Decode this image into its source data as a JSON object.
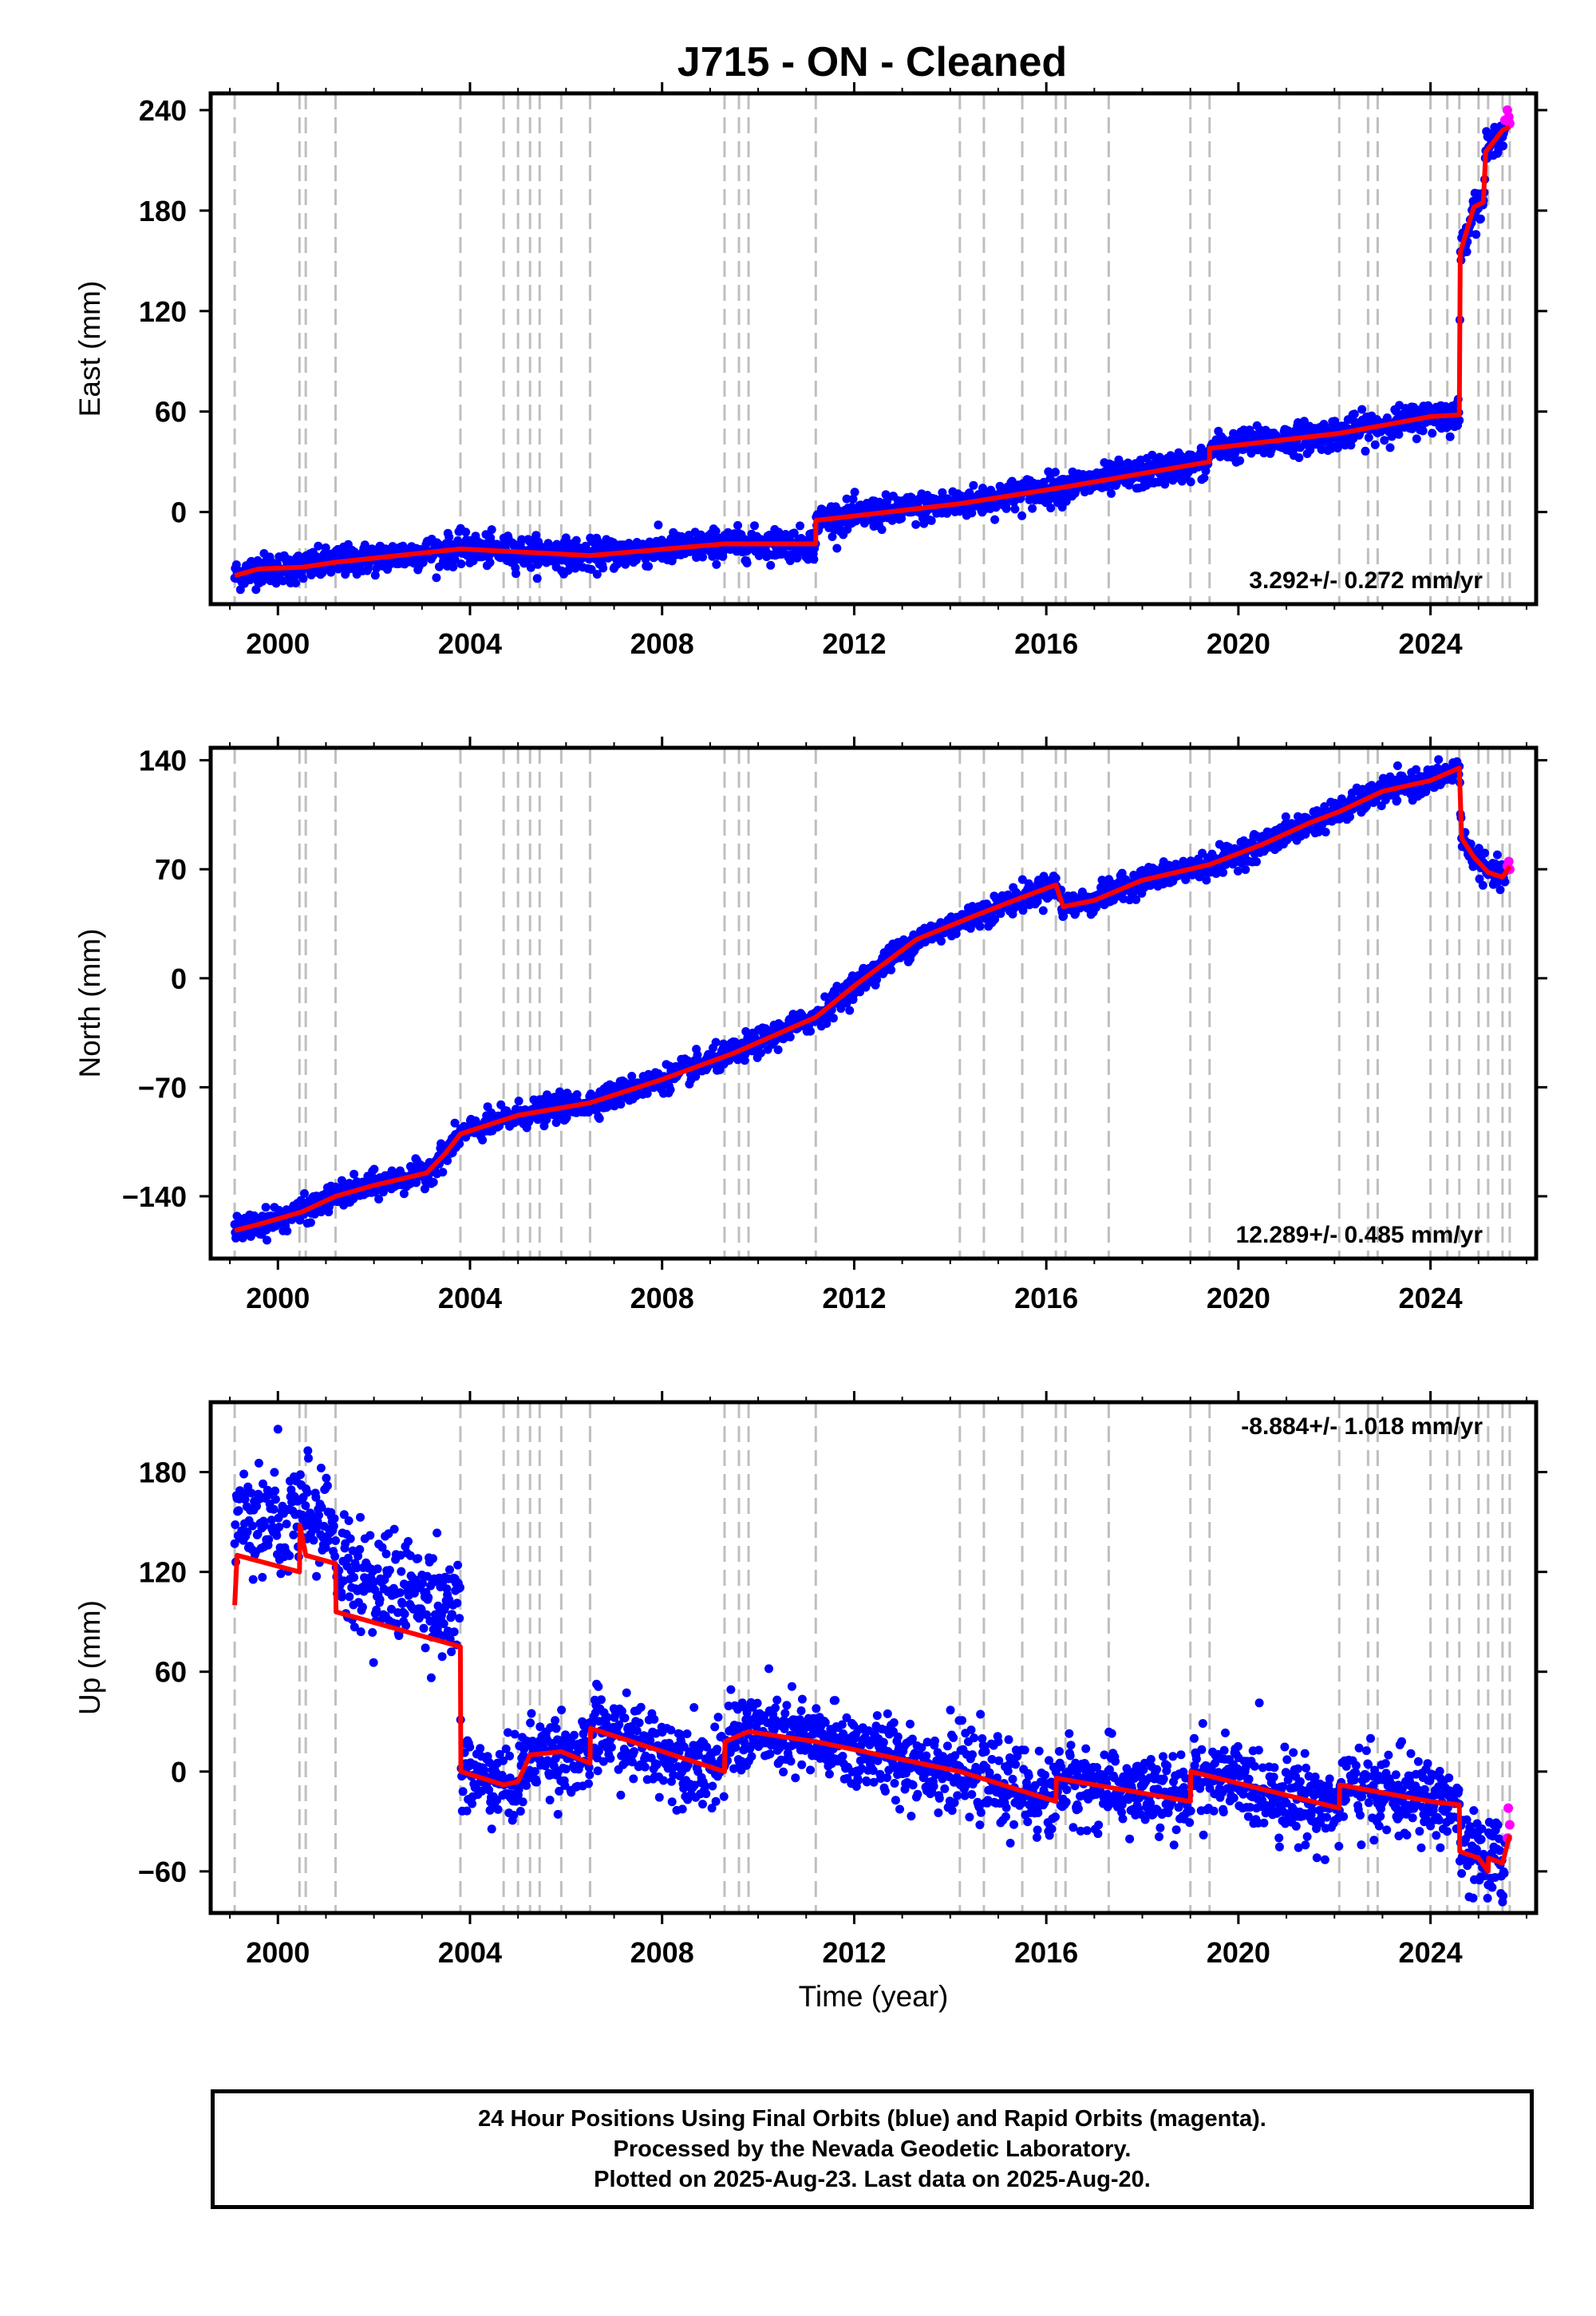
{
  "title": "J715  - ON - Cleaned",
  "colors": {
    "final": "#0000ff",
    "rapid": "#ff00ff",
    "model": "#ff0000",
    "steps": "#bfbfbf"
  },
  "footer": {
    "line1": "24 Hour Positions Using Final Orbits (blue) and Rapid Orbits (magenta).",
    "line2": "Processed by the Nevada Geodetic Laboratory.",
    "line3": "Plotted on 2025-Aug-23. Last data on 2025-Aug-20."
  },
  "chart_data": [
    {
      "type": "scatter",
      "title": "J715  - ON - Cleaned",
      "xlabel": "",
      "ylabel": "East (mm)",
      "xlim": [
        1998.6,
        2026.2
      ],
      "ylim": [
        -55,
        250
      ],
      "x_ticks": [
        "2000",
        "2004",
        "2008",
        "2012",
        "2016",
        "2020",
        "2024"
      ],
      "y_ticks": [
        "0",
        "60",
        "120",
        "180",
        "240"
      ],
      "rate": "3.292+/- 0.272 mm/yr",
      "rate_position": "bottom-right",
      "step_lines": [
        1999.1,
        2000.45,
        2000.58,
        2001.2,
        2003.8,
        2004.7,
        2005.0,
        2005.25,
        2005.45,
        2005.9,
        2006.5,
        2009.3,
        2009.6,
        2009.8,
        2011.2,
        2014.2,
        2014.7,
        2015.5,
        2016.2,
        2016.4,
        2017.3,
        2019.0,
        2019.4,
        2022.1,
        2022.7,
        2022.9,
        2024.0,
        2024.35,
        2024.6,
        2025.0,
        2025.2,
        2025.5,
        2025.65
      ],
      "model": [
        [
          1999.1,
          -38
        ],
        [
          1999.6,
          -34
        ],
        [
          2000.5,
          -33
        ],
        [
          2001.2,
          -30
        ],
        [
          2003.8,
          -22
        ],
        [
          2006.5,
          -26
        ],
        [
          2009.3,
          -19
        ],
        [
          2011.2,
          -19
        ],
        [
          2011.2,
          -5
        ],
        [
          2014.2,
          5
        ],
        [
          2016.4,
          15
        ],
        [
          2019.4,
          30
        ],
        [
          2019.4,
          38
        ],
        [
          2022.1,
          47
        ],
        [
          2024.0,
          57
        ],
        [
          2024.6,
          58
        ],
        [
          2024.62,
          155
        ],
        [
          2024.9,
          182
        ],
        [
          2025.1,
          185
        ],
        [
          2025.15,
          215
        ],
        [
          2025.5,
          228
        ],
        [
          2025.65,
          230
        ]
      ],
      "rapid": [
        [
          2025.55,
          234
        ],
        [
          2025.6,
          240
        ],
        [
          2025.63,
          236
        ],
        [
          2025.65,
          232
        ]
      ],
      "series": [
        {
          "name": "Final Orbits",
          "color": "#0000ff"
        },
        {
          "name": "Rapid Orbits",
          "color": "#ff00ff"
        }
      ]
    },
    {
      "type": "scatter",
      "xlabel": "",
      "ylabel": "North (mm)",
      "xlim": [
        1998.6,
        2026.2
      ],
      "ylim": [
        -180,
        148
      ],
      "x_ticks": [
        "2000",
        "2004",
        "2008",
        "2012",
        "2016",
        "2020",
        "2024"
      ],
      "y_ticks": [
        "−140",
        "−70",
        "0",
        "70",
        "140"
      ],
      "rate": "12.289+/- 0.485 mm/yr",
      "rate_position": "bottom-right",
      "step_lines": [
        1999.1,
        2000.45,
        2000.58,
        2001.2,
        2003.8,
        2004.7,
        2005.0,
        2005.25,
        2005.45,
        2005.9,
        2006.5,
        2009.3,
        2009.6,
        2009.8,
        2011.2,
        2014.2,
        2014.7,
        2015.5,
        2016.2,
        2016.4,
        2017.3,
        2019.0,
        2019.4,
        2022.1,
        2022.7,
        2022.9,
        2024.0,
        2024.35,
        2024.6,
        2025.0,
        2025.2,
        2025.5,
        2025.65
      ],
      "model": [
        [
          1999.1,
          -162
        ],
        [
          1999.6,
          -158
        ],
        [
          2000.5,
          -150
        ],
        [
          2001.2,
          -140
        ],
        [
          2002.0,
          -133
        ],
        [
          2003.1,
          -125
        ],
        [
          2003.5,
          -112
        ],
        [
          2003.8,
          -100
        ],
        [
          2005.0,
          -88
        ],
        [
          2006.5,
          -80
        ],
        [
          2008.0,
          -65
        ],
        [
          2009.5,
          -48
        ],
        [
          2011.2,
          -25
        ],
        [
          2012.0,
          -5
        ],
        [
          2013.3,
          25
        ],
        [
          2014.5,
          40
        ],
        [
          2015.5,
          52
        ],
        [
          2016.2,
          60
        ],
        [
          2016.35,
          46
        ],
        [
          2017.0,
          50
        ],
        [
          2018.0,
          63
        ],
        [
          2019.4,
          73
        ],
        [
          2020.5,
          86
        ],
        [
          2021.5,
          100
        ],
        [
          2022.1,
          107
        ],
        [
          2023.0,
          120
        ],
        [
          2024.0,
          127
        ],
        [
          2024.6,
          135
        ],
        [
          2024.65,
          90
        ],
        [
          2024.9,
          78
        ],
        [
          2025.2,
          68
        ],
        [
          2025.5,
          65
        ],
        [
          2025.65,
          72
        ]
      ],
      "rapid": [
        [
          2025.6,
          72
        ],
        [
          2025.63,
          75
        ],
        [
          2025.65,
          70
        ]
      ],
      "series": [
        {
          "name": "Final Orbits",
          "color": "#0000ff"
        },
        {
          "name": "Rapid Orbits",
          "color": "#ff00ff"
        }
      ]
    },
    {
      "type": "scatter",
      "xlabel": "Time (year)",
      "ylabel": "Up (mm)",
      "xlim": [
        1998.6,
        2026.2
      ],
      "ylim": [
        -85,
        222
      ],
      "x_ticks": [
        "2000",
        "2004",
        "2008",
        "2012",
        "2016",
        "2020",
        "2024"
      ],
      "y_ticks": [
        "−60",
        "0",
        "60",
        "120",
        "180"
      ],
      "rate": "-8.884+/- 1.018 mm/yr",
      "rate_position": "top-right",
      "step_lines": [
        1999.1,
        2000.45,
        2000.58,
        2001.2,
        2003.8,
        2004.7,
        2005.0,
        2005.25,
        2005.45,
        2005.9,
        2006.5,
        2009.3,
        2009.6,
        2009.8,
        2011.2,
        2014.2,
        2014.7,
        2015.5,
        2016.2,
        2016.4,
        2017.3,
        2019.0,
        2019.4,
        2022.1,
        2022.7,
        2022.9,
        2024.0,
        2024.35,
        2024.6,
        2025.0,
        2025.2,
        2025.5,
        2025.65
      ],
      "model": [
        [
          1999.1,
          100
        ],
        [
          1999.15,
          130
        ],
        [
          2000.45,
          120
        ],
        [
          2000.46,
          148
        ],
        [
          2000.58,
          130
        ],
        [
          2001.2,
          125
        ],
        [
          2001.21,
          96
        ],
        [
          2003.8,
          75
        ],
        [
          2003.81,
          0
        ],
        [
          2004.7,
          -8
        ],
        [
          2005.0,
          -6
        ],
        [
          2005.25,
          10
        ],
        [
          2005.9,
          12
        ],
        [
          2006.5,
          5
        ],
        [
          2006.51,
          26
        ],
        [
          2009.3,
          0
        ],
        [
          2009.31,
          18
        ],
        [
          2009.8,
          24
        ],
        [
          2011.2,
          18
        ],
        [
          2014.2,
          0
        ],
        [
          2016.2,
          -18
        ],
        [
          2016.21,
          -4
        ],
        [
          2019.0,
          -18
        ],
        [
          2019.01,
          0
        ],
        [
          2022.1,
          -22
        ],
        [
          2022.11,
          -8
        ],
        [
          2024.0,
          -18
        ],
        [
          2024.6,
          -20
        ],
        [
          2024.61,
          -48
        ],
        [
          2025.0,
          -52
        ],
        [
          2025.2,
          -60
        ],
        [
          2025.21,
          -52
        ],
        [
          2025.5,
          -55
        ],
        [
          2025.65,
          -38
        ]
      ],
      "rapid": [
        [
          2025.6,
          -40
        ],
        [
          2025.62,
          -22
        ],
        [
          2025.65,
          -32
        ]
      ],
      "series": [
        {
          "name": "Final Orbits",
          "color": "#0000ff"
        },
        {
          "name": "Rapid Orbits",
          "color": "#ff00ff"
        }
      ]
    }
  ]
}
